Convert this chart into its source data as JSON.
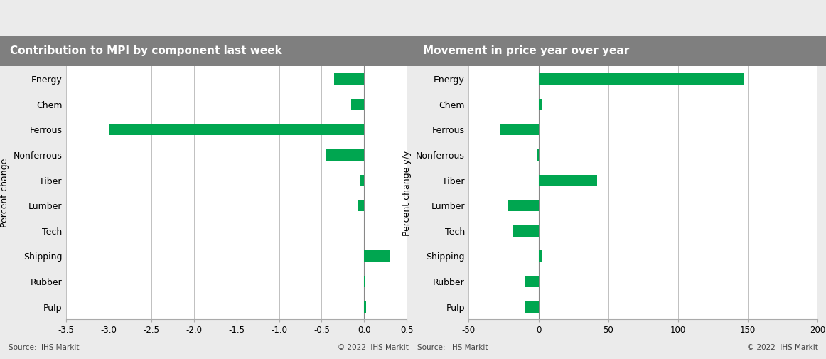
{
  "categories": [
    "Energy",
    "Chem",
    "Ferrous",
    "Nonferrous",
    "Fiber",
    "Lumber",
    "Tech",
    "Shipping",
    "Rubber",
    "Pulp"
  ],
  "chart1": {
    "title": "Contribution to MPI by component last week",
    "values": [
      -0.35,
      -0.15,
      -3.0,
      -0.45,
      -0.05,
      -0.07,
      0.0,
      0.3,
      0.01,
      0.02
    ],
    "ylabel": "Percent change",
    "xlim": [
      -3.5,
      0.5
    ],
    "xticks": [
      -3.5,
      -3.0,
      -2.5,
      -2.0,
      -1.5,
      -1.0,
      -0.5,
      0.0,
      0.5
    ],
    "xtick_labels": [
      "-3.5",
      "-3.0",
      "-2.5",
      "-2.0",
      "-1.5",
      "-1.0",
      "-0.5",
      "0.0",
      "0.5"
    ]
  },
  "chart2": {
    "title": "Movement in price year over year",
    "values": [
      147.0,
      2.0,
      -28.0,
      -1.0,
      42.0,
      -22.0,
      -18.0,
      2.5,
      -10.0,
      -10.0
    ],
    "ylabel": "Percent change y/y",
    "xlim": [
      -50,
      200
    ],
    "xticks": [
      -50,
      0,
      50,
      100,
      150,
      200
    ],
    "xtick_labels": [
      "-50",
      "0",
      "50",
      "100",
      "150",
      "200"
    ]
  },
  "bar_color": "#00a650",
  "background_color": "#ebebeb",
  "plot_bg_color": "#ffffff",
  "title_bg_color": "#7f7f7f",
  "title_font_color": "#ffffff",
  "label_color": "#333333",
  "source_text": "Source:  IHS Markit",
  "copyright_text": "© 2022  IHS Markit",
  "title_fontsize": 11,
  "axis_fontsize": 9,
  "tick_fontsize": 8.5,
  "source_fontsize": 7.5,
  "bar_height": 0.45
}
